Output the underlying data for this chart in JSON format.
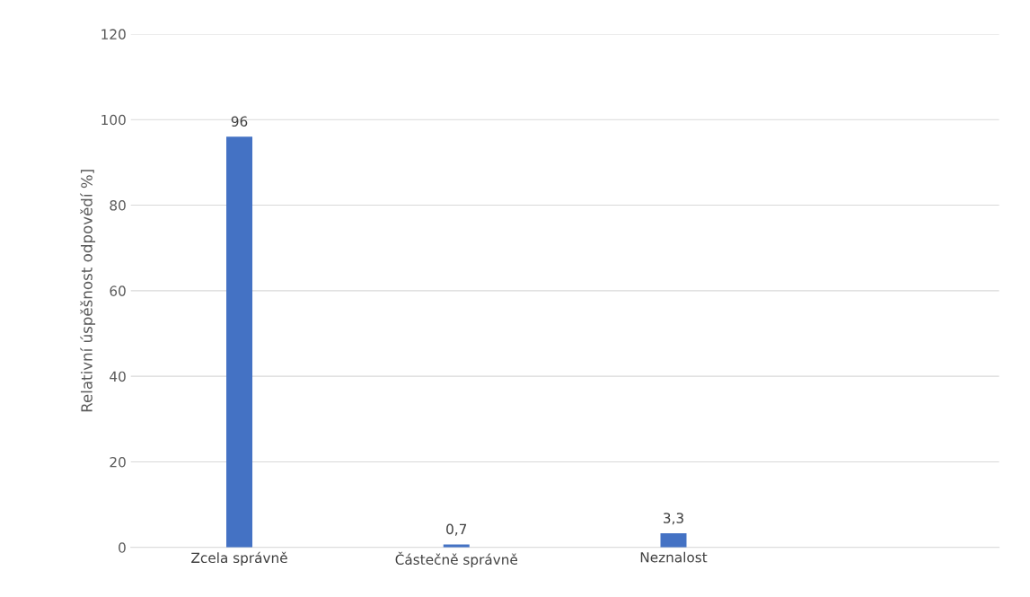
{
  "chart_data": {
    "type": "bar",
    "ylabel": "Relativní úspěšnost odpovědí %]",
    "categories": [
      "Zcela správně",
      "Částečně správně",
      "Neznalost",
      null
    ],
    "values": [
      96,
      0.7,
      3.3,
      null
    ],
    "value_labels": [
      "96",
      "0,7",
      "3,3",
      null
    ],
    "color": "#4472c4",
    "ylim": [
      0,
      120
    ],
    "yticks": [
      0,
      20,
      40,
      60,
      80,
      100,
      120
    ],
    "grid": "y"
  }
}
